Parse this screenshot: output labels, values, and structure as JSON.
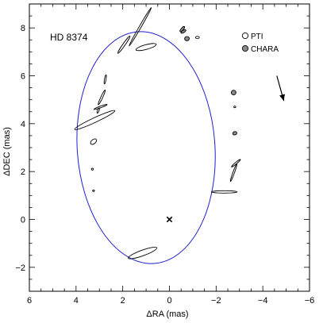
{
  "chart_data": {
    "type": "scatter",
    "title": "HD 8374",
    "xlabel": "ΔRA (mas)",
    "ylabel": "ΔDEC (mas)",
    "xlim": [
      6,
      -6
    ],
    "ylim": [
      -3,
      9
    ],
    "x_ticks": [
      6,
      4,
      2,
      0,
      -2,
      -4,
      -6
    ],
    "y_ticks": [
      -2,
      0,
      2,
      4,
      6,
      8
    ],
    "x_tick_labels": [
      "6",
      "4",
      "2",
      "0",
      "−2",
      "−4",
      "−6"
    ],
    "y_tick_labels": [
      "−2",
      "0",
      "2",
      "4",
      "6",
      "8"
    ],
    "grid": false,
    "legend_position": "top-right",
    "orbit": {
      "center": [
        1.0,
        3.0
      ],
      "semi_axis_x": 2.95,
      "semi_axis_y": 4.85,
      "rotation_deg": -4,
      "color": "#1f1fd0"
    },
    "primary_marker": {
      "x": 0,
      "y": 0,
      "symbol": "x"
    },
    "motion_arrow": {
      "from": [
        -4.6,
        6.0
      ],
      "to": [
        -4.9,
        4.95
      ]
    },
    "legend": [
      {
        "label": "PTI",
        "style": "open"
      },
      {
        "label": "CHARA",
        "style": "filled"
      }
    ],
    "series": [
      {
        "name": "PTI",
        "marker": "open-ellipse",
        "points": [
          {
            "x": 1.25,
            "y": 8.05,
            "rx": 0.95,
            "ry": 0.04,
            "angle_deg": 60
          },
          {
            "x": 1.95,
            "y": 7.3,
            "rx": 0.45,
            "ry": 0.05,
            "angle_deg": 55
          },
          {
            "x": 1.0,
            "y": 7.2,
            "rx": 0.45,
            "ry": 0.1,
            "angle_deg": 15
          },
          {
            "x": 2.75,
            "y": 5.85,
            "rx": 0.2,
            "ry": 0.03,
            "angle_deg": 80
          },
          {
            "x": 2.9,
            "y": 5.1,
            "rx": 0.35,
            "ry": 0.04,
            "angle_deg": 65
          },
          {
            "x": 2.95,
            "y": 4.7,
            "rx": 0.3,
            "ry": 0.03,
            "angle_deg": 20
          },
          {
            "x": 3.2,
            "y": 4.15,
            "rx": 0.95,
            "ry": 0.1,
            "angle_deg": 25
          },
          {
            "x": 3.05,
            "y": 4.55,
            "rx": 0.12,
            "ry": 0.03,
            "angle_deg": 70
          },
          {
            "x": 3.25,
            "y": 3.25,
            "rx": 0.15,
            "ry": 0.09,
            "angle_deg": 40
          },
          {
            "x": 3.3,
            "y": 2.1,
            "rx": 0.04,
            "ry": 0.04,
            "angle_deg": 0
          },
          {
            "x": 3.25,
            "y": 1.2,
            "rx": 0.03,
            "ry": 0.03,
            "angle_deg": 0
          },
          {
            "x": 1.15,
            "y": -1.4,
            "rx": 0.65,
            "ry": 0.12,
            "angle_deg": 20
          },
          {
            "x": -2.85,
            "y": 2.35,
            "rx": 0.25,
            "ry": 0.03,
            "angle_deg": 40
          },
          {
            "x": -2.75,
            "y": 1.95,
            "rx": 0.4,
            "ry": 0.03,
            "angle_deg": 70
          },
          {
            "x": -2.35,
            "y": 1.15,
            "rx": 0.55,
            "ry": 0.05,
            "angle_deg": 0
          },
          {
            "x": -2.8,
            "y": 4.7,
            "rx": 0.03,
            "ry": 0.03,
            "angle_deg": 0
          },
          {
            "x": -1.2,
            "y": 7.6,
            "rx": 0.08,
            "ry": 0.05,
            "angle_deg": 0
          }
        ]
      },
      {
        "name": "CHARA",
        "marker": "filled-ellipse",
        "points": [
          {
            "x": -0.6,
            "y": 7.85,
            "rx": 0.12,
            "ry": 0.05,
            "angle_deg": 30
          },
          {
            "x": -0.55,
            "y": 7.95,
            "rx": 0.14,
            "ry": 0.05,
            "angle_deg": 50
          },
          {
            "x": -0.75,
            "y": 7.55,
            "rx": 0.1,
            "ry": 0.09,
            "angle_deg": 0
          },
          {
            "x": -2.75,
            "y": 5.3,
            "rx": 0.1,
            "ry": 0.1,
            "angle_deg": 0
          },
          {
            "x": -2.8,
            "y": 3.6,
            "rx": 0.09,
            "ry": 0.07,
            "angle_deg": 20
          }
        ]
      }
    ]
  }
}
